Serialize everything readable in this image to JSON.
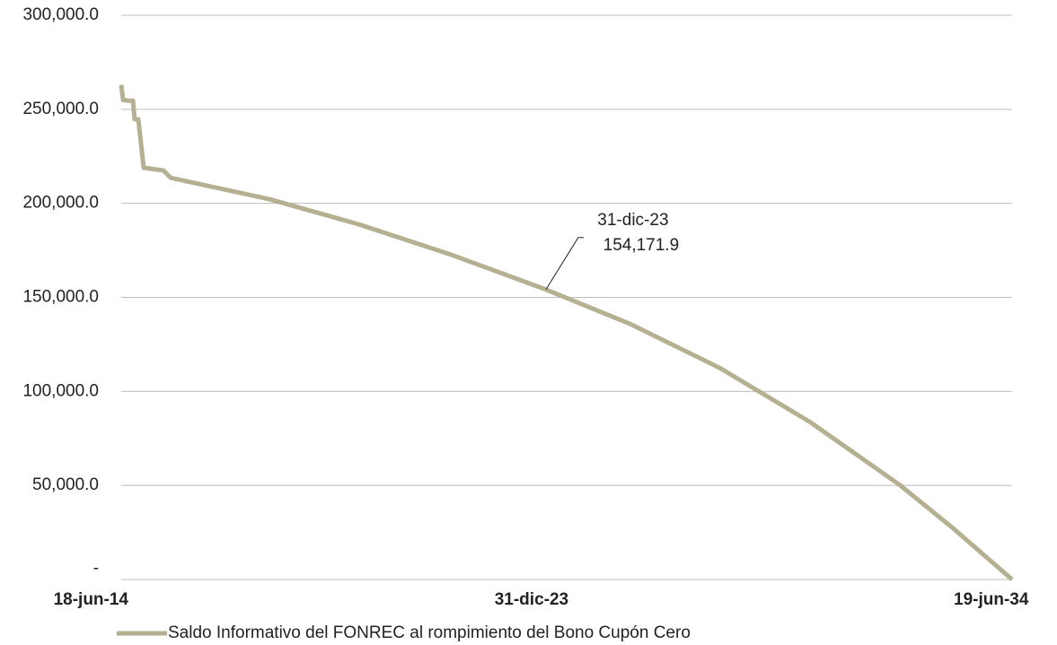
{
  "chart_data": {
    "type": "line",
    "x": [
      "2014-06-18",
      "2014-07-03",
      "2014-08-16",
      "2014-09-22",
      "2014-10-06",
      "2014-11-05",
      "2014-12-19",
      "2015-05-30",
      "2015-07-28",
      "2017-10-15",
      "2019-10-20",
      "2021-10-27",
      "2023-12-31",
      "2025-11-20",
      "2027-11-25",
      "2029-12-01",
      "2031-12-06",
      "2033-02-21",
      "2034-06-19"
    ],
    "series": [
      {
        "name": "Saldo Informativo del FONREC al rompimiento del Bono Cupón Cero",
        "color": "#b5b092",
        "values": [
          263000,
          255000,
          254600,
          254600,
          244700,
          244700,
          218900,
          217500,
          213600,
          202200,
          188800,
          173100,
          154171.9,
          135900,
          112500,
          83900,
          50500,
          27200,
          0
        ]
      }
    ],
    "xlim": [
      "2014-06-18",
      "2034-06-19"
    ],
    "xticks": [
      {
        "value": "2014-06-18",
        "label": "18-jun-14"
      },
      {
        "value": "2023-12-31",
        "label": "31-dic-23"
      },
      {
        "value": "2034-06-19",
        "label": "19-jun-34"
      }
    ],
    "ylim": [
      0,
      300000
    ],
    "yticks": [
      {
        "value": 0,
        "label": "-"
      },
      {
        "value": 50000,
        "label": "50,000.0"
      },
      {
        "value": 100000,
        "label": "100,000.0"
      },
      {
        "value": 150000,
        "label": "150,000.0"
      },
      {
        "value": 200000,
        "label": "200,000.0"
      },
      {
        "value": 250000,
        "label": "250,000.0"
      },
      {
        "value": 300000,
        "label": "300,000.0"
      }
    ],
    "grid": true,
    "annotation": {
      "x": "2023-12-31",
      "label": "31-dic-23",
      "value": 154171.9,
      "value_label": "154,171.9",
      "color": "#e0393e"
    },
    "legend": "bottom"
  }
}
